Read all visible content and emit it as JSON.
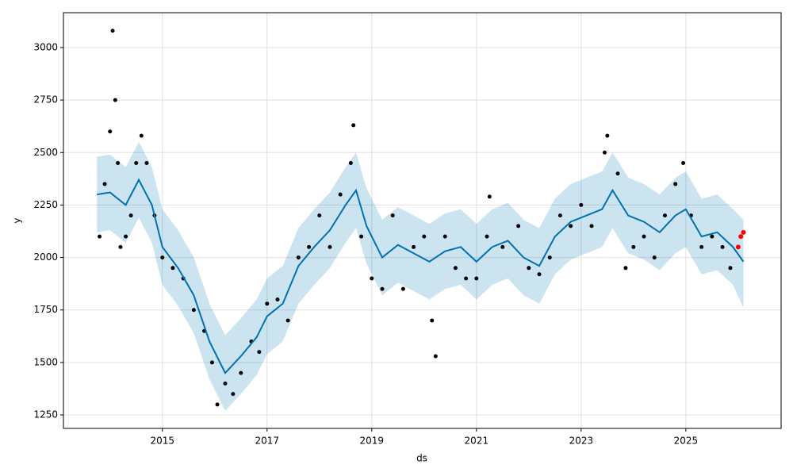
{
  "chart_data": {
    "type": "line",
    "xlabel": "ds",
    "ylabel": "y",
    "xlim": [
      2013.11,
      2026.82
    ],
    "ylim": [
      1186,
      3166
    ],
    "xticks": [
      2015,
      2017,
      2019,
      2021,
      2023,
      2025
    ],
    "yticks": [
      1250,
      1500,
      1750,
      2000,
      2250,
      2500,
      2750,
      3000
    ],
    "grid": true,
    "forecast": {
      "color": "#0072b2",
      "band_color": "#0072b2",
      "x": [
        2013.75,
        2014.0,
        2014.3,
        2014.55,
        2014.8,
        2015.0,
        2015.3,
        2015.6,
        2015.9,
        2016.2,
        2016.5,
        2016.8,
        2017.0,
        2017.3,
        2017.6,
        2017.9,
        2018.2,
        2018.5,
        2018.7,
        2018.9,
        2019.2,
        2019.5,
        2019.8,
        2020.1,
        2020.4,
        2020.7,
        2021.0,
        2021.3,
        2021.6,
        2021.9,
        2022.2,
        2022.5,
        2022.8,
        2023.1,
        2023.4,
        2023.6,
        2023.9,
        2024.2,
        2024.5,
        2024.8,
        2025.0,
        2025.3,
        2025.6,
        2025.9,
        2026.1
      ],
      "values": [
        2300,
        2310,
        2250,
        2370,
        2250,
        2050,
        1950,
        1820,
        1600,
        1450,
        1530,
        1620,
        1720,
        1780,
        1960,
        2050,
        2130,
        2250,
        2320,
        2150,
        2000,
        2060,
        2020,
        1980,
        2030,
        2050,
        1980,
        2050,
        2080,
        2000,
        1960,
        2100,
        2170,
        2200,
        2230,
        2320,
        2200,
        2170,
        2120,
        2200,
        2230,
        2100,
        2120,
        2050,
        1980
      ],
      "upper": [
        2480,
        2490,
        2430,
        2550,
        2430,
        2230,
        2130,
        2000,
        1780,
        1630,
        1710,
        1800,
        1900,
        1960,
        2140,
        2230,
        2310,
        2430,
        2500,
        2330,
        2180,
        2240,
        2200,
        2160,
        2210,
        2230,
        2160,
        2230,
        2260,
        2180,
        2140,
        2280,
        2350,
        2380,
        2410,
        2500,
        2380,
        2350,
        2300,
        2380,
        2410,
        2280,
        2300,
        2230,
        2180
      ],
      "lower": [
        2120,
        2130,
        2070,
        2190,
        2070,
        1870,
        1770,
        1640,
        1420,
        1270,
        1350,
        1440,
        1540,
        1600,
        1780,
        1870,
        1950,
        2070,
        2140,
        1970,
        1820,
        1880,
        1840,
        1800,
        1850,
        1870,
        1800,
        1870,
        1900,
        1820,
        1780,
        1920,
        1990,
        2020,
        2050,
        2140,
        2020,
        1990,
        1940,
        2020,
        2050,
        1920,
        1940,
        1870,
        1760
      ]
    },
    "observed": {
      "color": "#000000",
      "x": [
        2013.8,
        2013.9,
        2014.0,
        2014.05,
        2014.1,
        2014.15,
        2014.2,
        2014.3,
        2014.4,
        2014.5,
        2014.6,
        2014.7,
        2014.85,
        2015.0,
        2015.2,
        2015.4,
        2015.6,
        2015.8,
        2015.95,
        2016.05,
        2016.2,
        2016.35,
        2016.5,
        2016.7,
        2016.85,
        2017.0,
        2017.2,
        2017.4,
        2017.6,
        2017.8,
        2018.0,
        2018.2,
        2018.4,
        2018.6,
        2018.65,
        2018.8,
        2019.0,
        2019.2,
        2019.4,
        2019.6,
        2019.8,
        2020.0,
        2020.15,
        2020.22,
        2020.4,
        2020.6,
        2020.8,
        2021.0,
        2021.2,
        2021.25,
        2021.5,
        2021.8,
        2022.0,
        2022.2,
        2022.4,
        2022.6,
        2022.8,
        2023.0,
        2023.2,
        2023.45,
        2023.5,
        2023.7,
        2023.85,
        2024.0,
        2024.2,
        2024.4,
        2024.6,
        2024.8,
        2024.95,
        2025.1,
        2025.3,
        2025.5,
        2025.7,
        2025.85
      ],
      "values": [
        2100,
        2350,
        2600,
        3080,
        2750,
        2450,
        2050,
        2100,
        2200,
        2450,
        2580,
        2450,
        2200,
        2000,
        1950,
        1900,
        1750,
        1650,
        1500,
        1300,
        1400,
        1350,
        1450,
        1600,
        1550,
        1780,
        1800,
        1700,
        2000,
        2050,
        2200,
        2050,
        2300,
        2450,
        2630,
        2100,
        1900,
        1850,
        2200,
        1850,
        2050,
        2100,
        1700,
        1530,
        2100,
        1950,
        1900,
        1900,
        2100,
        2290,
        2050,
        2150,
        1950,
        1920,
        2000,
        2200,
        2150,
        2250,
        2150,
        2500,
        2580,
        2400,
        1950,
        2050,
        2100,
        2000,
        2200,
        2350,
        2450,
        2200,
        2050,
        2100,
        2050,
        1950
      ]
    },
    "recent": {
      "color": "#ff0000",
      "x": [
        2026.0,
        2026.05,
        2026.1
      ],
      "values": [
        2050,
        2100,
        2120
      ]
    }
  }
}
